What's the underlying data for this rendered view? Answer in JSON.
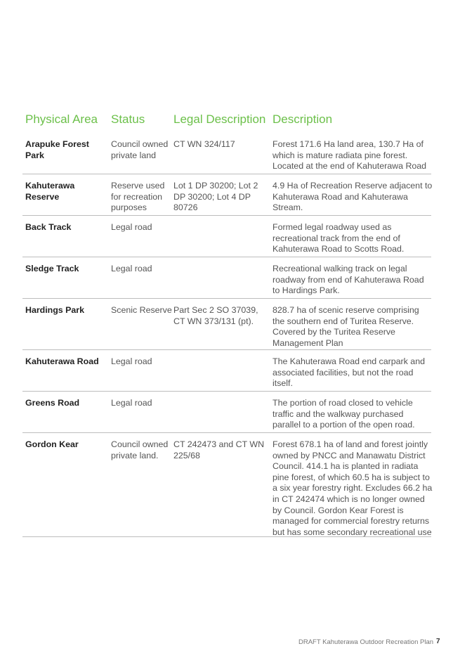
{
  "table": {
    "headers": [
      "Physical Area",
      "Status",
      "Legal Description",
      "Description"
    ],
    "rows": [
      {
        "area": "Arapuke Forest Park",
        "status": "Council owned private land",
        "legal": "CT WN 324/117",
        "description": "Forest 171.6 Ha land area, 130.7 Ha of which is mature radiata pine forest. Located at the end of Kahuterawa Road"
      },
      {
        "area": "Kahuterawa Reserve",
        "status": "Reserve used for recreation purposes",
        "legal": "Lot 1 DP 30200; Lot 2 DP 30200; Lot 4 DP 80726",
        "description": "4.9 Ha of Recreation Reserve adjacent to Kahuterawa Road and Kahuterawa Stream."
      },
      {
        "area": "Back Track",
        "status": "Legal road",
        "legal": "",
        "description": "Formed legal roadway used as recreational track from the end of Kahuterawa Road to Scotts Road."
      },
      {
        "area": "Sledge Track",
        "status": "Legal road",
        "legal": "",
        "description": "Recreational walking track on legal roadway from end of Kahuterawa Road to Hardings Park."
      },
      {
        "area": "Hardings Park",
        "status": "Scenic Reserve",
        "legal": "Part Sec 2 SO 37039, CT WN 373/131 (pt).",
        "description": "828.7 ha of scenic reserve comprising the southern end of Turitea Reserve. Covered by the Turitea Reserve Management Plan"
      },
      {
        "area": "Kahuterawa Road",
        "status": "Legal road",
        "legal": "",
        "description": "The Kahuterawa Road end carpark and associated facilities, but not the road itself."
      },
      {
        "area": "Greens Road",
        "status": "Legal road",
        "legal": "",
        "description": "The portion of road closed to vehicle traffic and the walkway purchased parallel to a portion of the open road."
      },
      {
        "area": "Gordon Kear",
        "status": "Council owned private land.",
        "legal": "CT 242473 and CT WN 225/68",
        "description": "Forest 678.1 ha of land and forest jointly owned by PNCC and Manawatu District Council. 414.1 ha is planted in radiata pine forest, of which 60.5 ha is subject to a six year forestry right. Excludes 66.2 ha in CT 242474 which is no longer owned by Council. Gordon Kear Forest is managed for commercial forestry returns but has some secondary recreational use"
      }
    ]
  },
  "footer": {
    "title": "DRAFT Kahuterawa Outdoor Recreation Plan",
    "page": "7"
  },
  "colors": {
    "heading": "#6cc04a",
    "divider": "#bdbdbd"
  }
}
